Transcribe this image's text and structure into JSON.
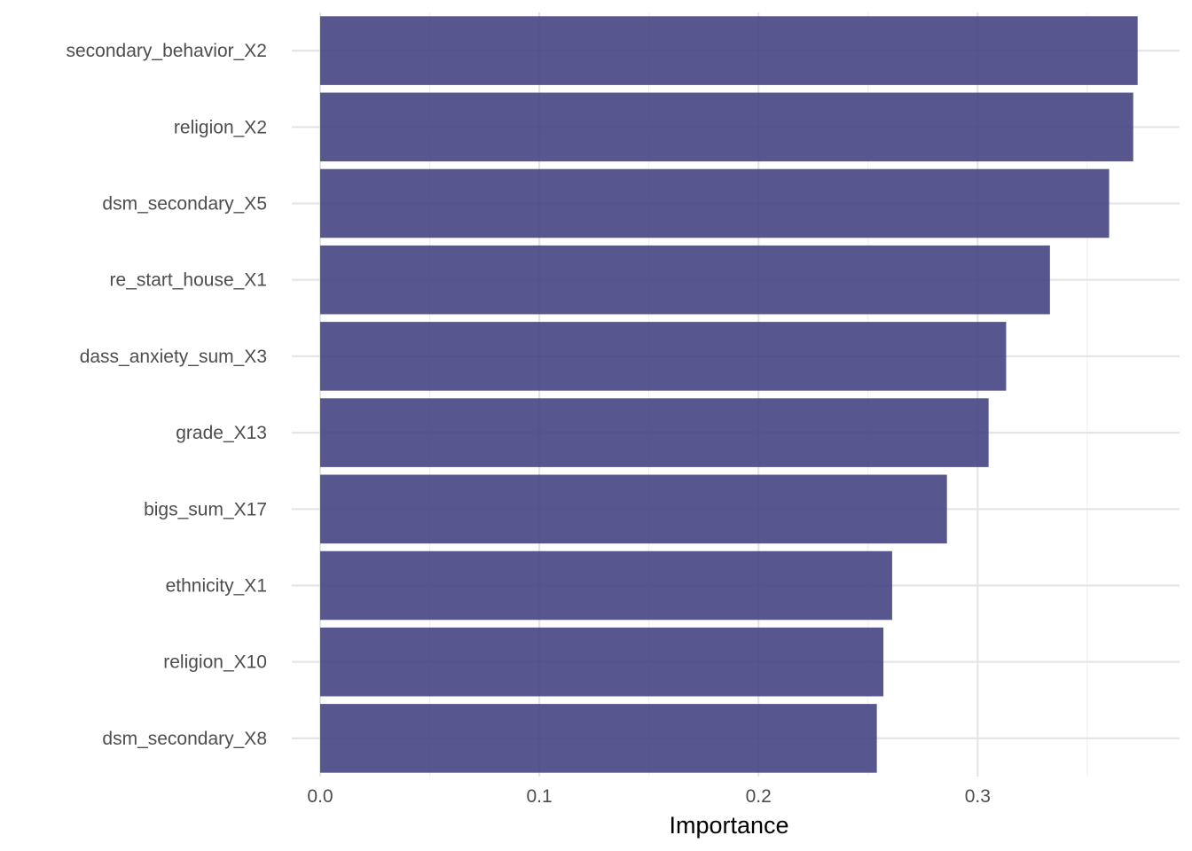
{
  "chart_data": {
    "type": "bar",
    "orientation": "horizontal",
    "categories": [
      "secondary_behavior_X2",
      "religion_X2",
      "dsm_secondary_X5",
      "re_start_house_X1",
      "dass_anxiety_sum_X3",
      "grade_X13",
      "bigs_sum_X17",
      "ethnicity_X1",
      "religion_X10",
      "dsm_secondary_X8"
    ],
    "values": [
      0.373,
      0.371,
      0.36,
      0.333,
      0.313,
      0.305,
      0.286,
      0.261,
      0.257,
      0.254
    ],
    "xlabel": "Importance",
    "ylabel": "",
    "xlim": [
      0,
      0.38
    ],
    "x_ticks": [
      "0.0",
      "0.1",
      "0.2",
      "0.3"
    ],
    "x_tick_values": [
      0,
      0.1,
      0.2,
      0.3
    ],
    "bar_color": "#3f3d7e",
    "bar_opacity": 0.87,
    "grid": true,
    "legend": "none"
  }
}
